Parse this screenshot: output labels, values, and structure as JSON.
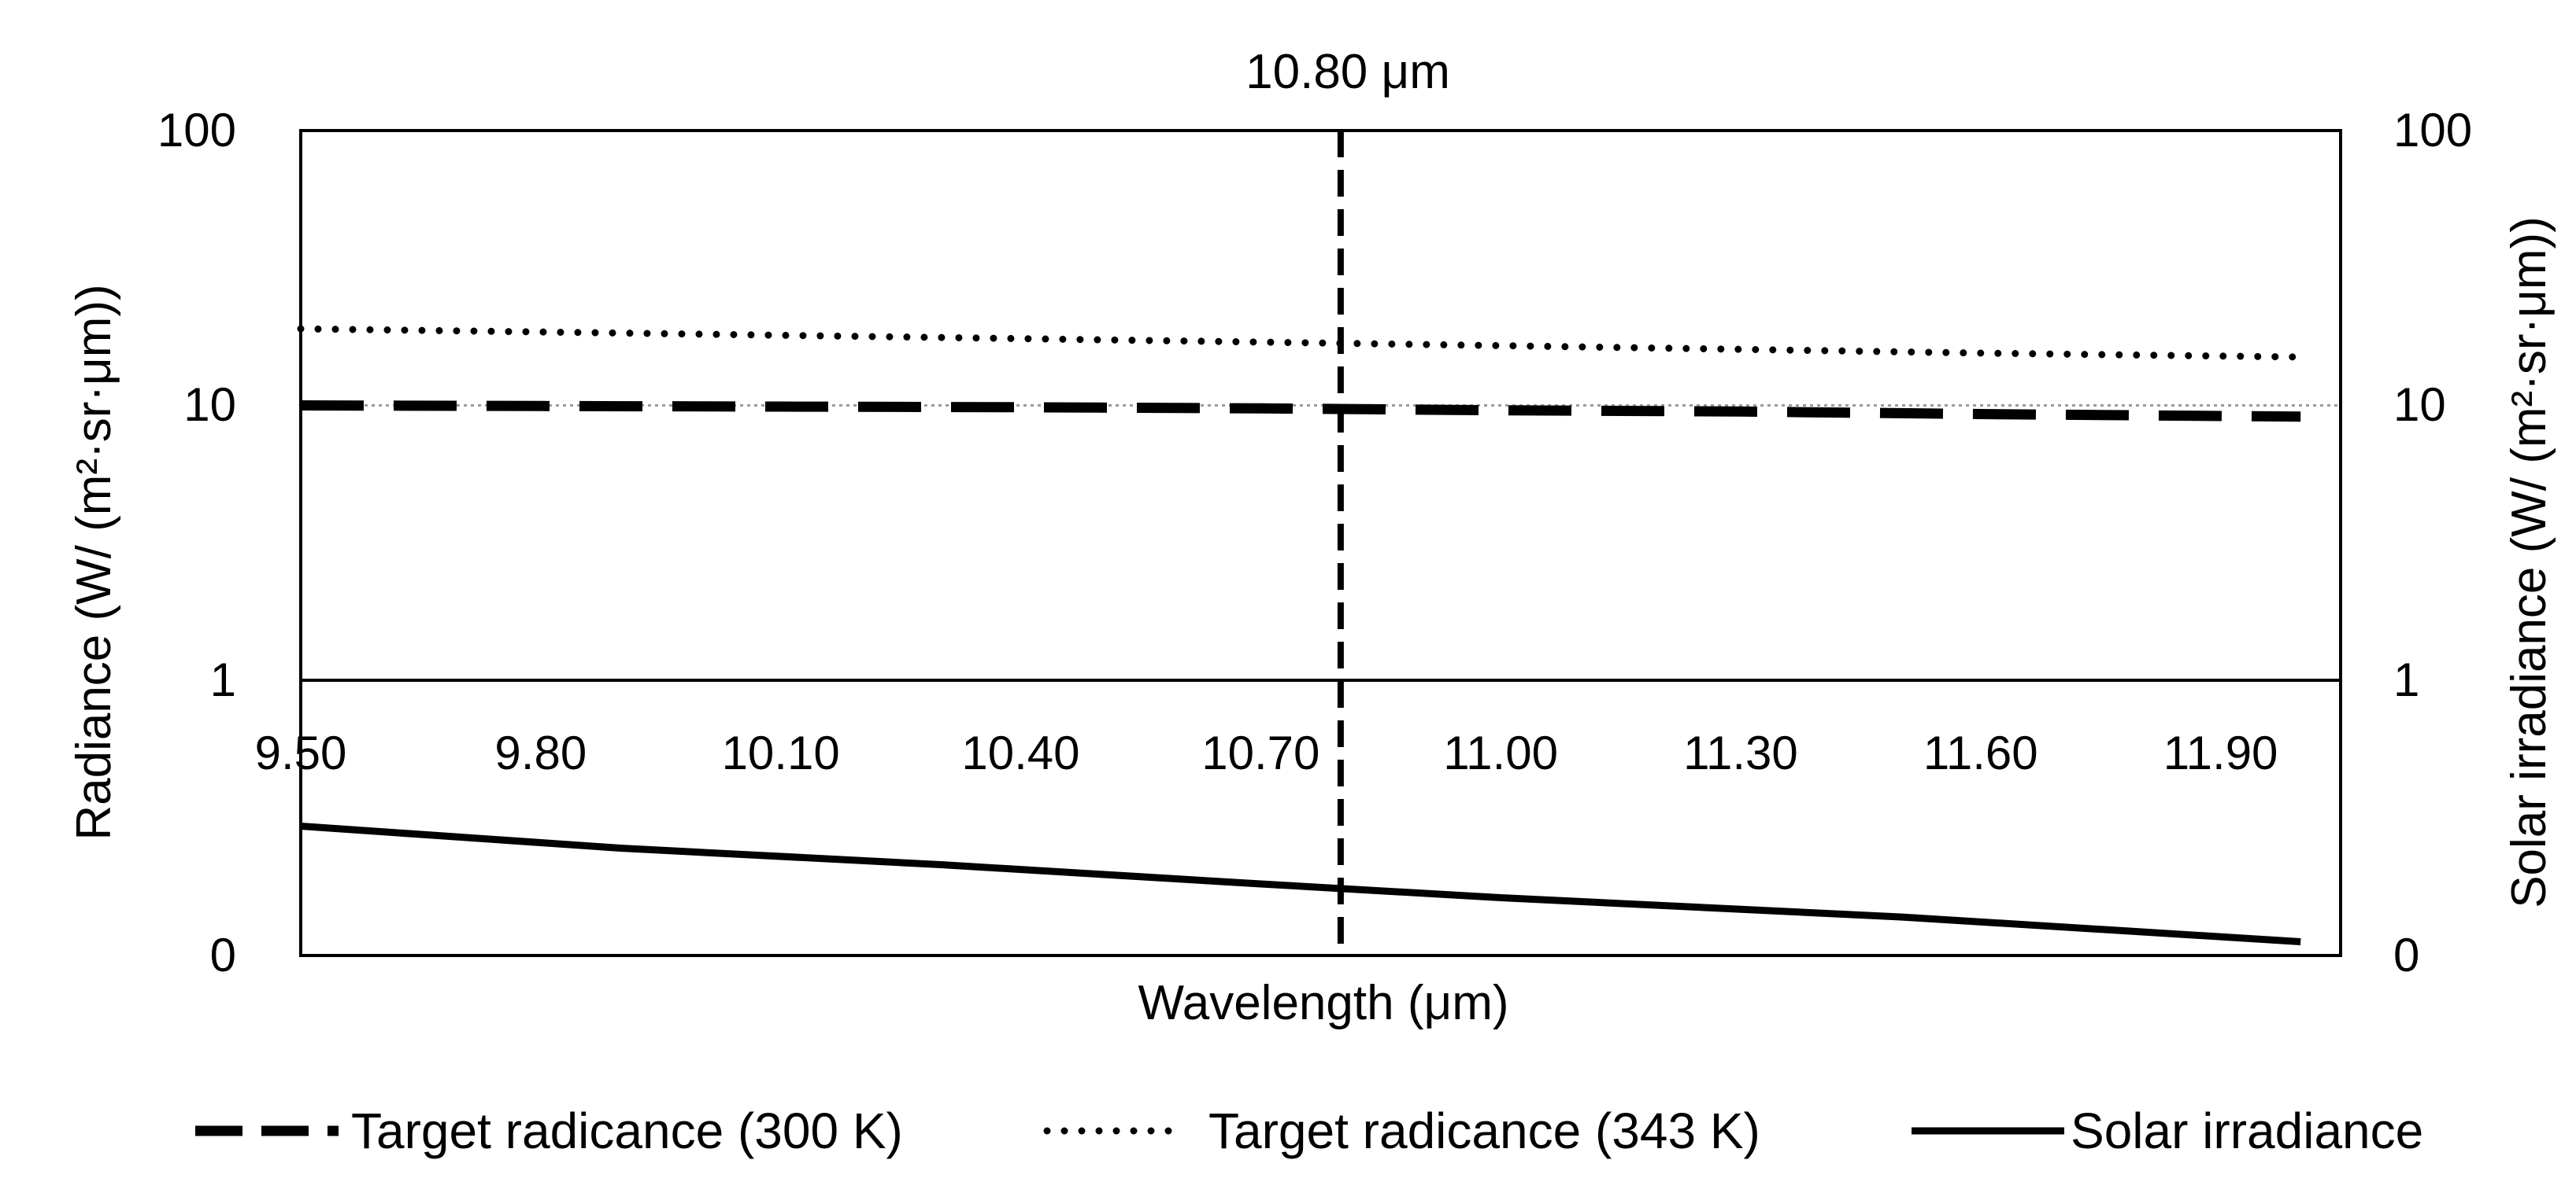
{
  "chart_data": {
    "type": "line",
    "annotation": "10.80 μm",
    "annotation_x": 10.8,
    "xlabel": "Wavelength (μm)",
    "ylabel_left": "Radiance (W/ (m²·sr·μm))",
    "ylabel_right": "Solar irradiance (W/ (m²·sr·μm))",
    "x_ticks": [
      "9.50",
      "9.80",
      "10.10",
      "10.40",
      "10.70",
      "11.00",
      "11.30",
      "11.60",
      "11.90"
    ],
    "x_tick_values": [
      9.5,
      9.8,
      10.1,
      10.4,
      10.7,
      11.0,
      11.3,
      11.6,
      11.9
    ],
    "xlim": [
      9.5,
      12.05
    ],
    "y_scale": "log",
    "y_ticks": [
      "0",
      "1",
      "10",
      "100"
    ],
    "ylim_upper_log": [
      1,
      100
    ],
    "ylim_lower_linear": [
      0,
      1
    ],
    "reference_line_y": 10,
    "series": [
      {
        "name": "Target radicance (300 K)",
        "style": "dashed",
        "x": [
          9.5,
          9.8,
          10.1,
          10.4,
          10.7,
          11.0,
          11.3,
          11.6,
          12.0
        ],
        "y": [
          10.0,
          9.95,
          9.9,
          9.85,
          9.75,
          9.6,
          9.5,
          9.3,
          9.1
        ]
      },
      {
        "name": "Target radicance (343 K)",
        "style": "dotted",
        "x": [
          9.5,
          9.8,
          10.1,
          10.4,
          10.7,
          11.0,
          11.3,
          11.6,
          12.0
        ],
        "y": [
          19.0,
          18.5,
          18.0,
          17.5,
          17.0,
          16.5,
          16.0,
          15.5,
          15.0
        ]
      },
      {
        "name": "Solar irradiance",
        "style": "solid",
        "x": [
          9.5,
          9.9,
          10.3,
          10.7,
          11.0,
          11.5,
          12.0
        ],
        "y": [
          0.47,
          0.39,
          0.33,
          0.26,
          0.21,
          0.14,
          0.05
        ]
      }
    ],
    "legend_position": "bottom"
  }
}
